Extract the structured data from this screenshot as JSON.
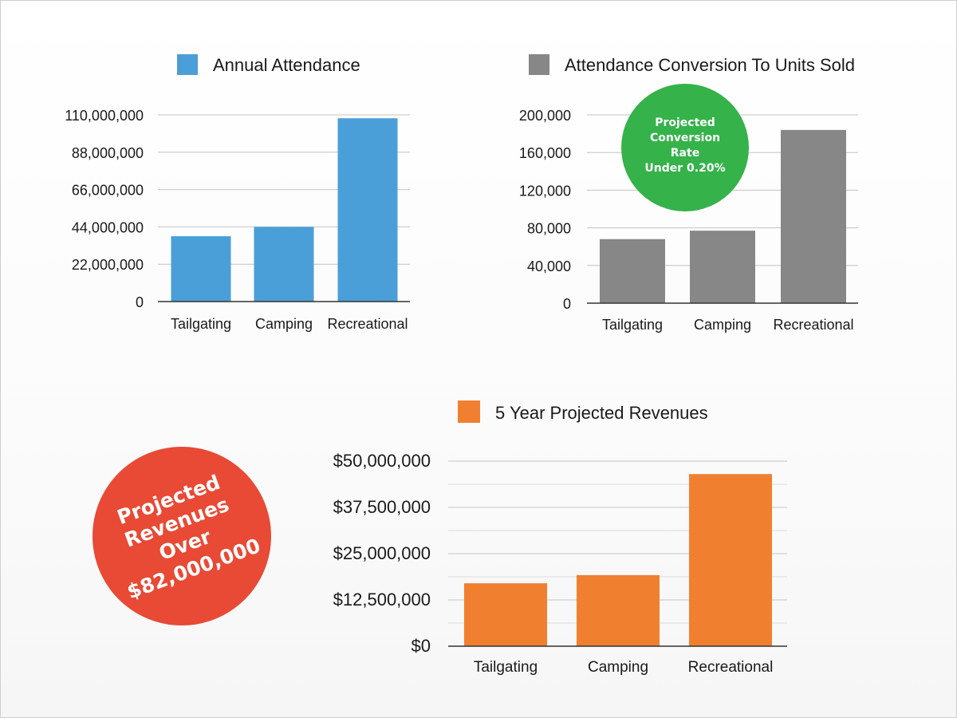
{
  "chart_data": [
    {
      "type": "bar",
      "title": "",
      "categories": [
        "Tailgating",
        "Camping",
        "Recreational"
      ],
      "series": [
        {
          "name": "Annual Attendance",
          "values": [
            38500000,
            44000000,
            108000000
          ],
          "color": "#4a9fd8"
        }
      ],
      "yticks": [
        "0",
        "22,000,000",
        "44,000,000",
        "66,000,000",
        "88,000,000",
        "110,000,000"
      ],
      "ylim": [
        0,
        110000000
      ],
      "legend": "top",
      "grid": true
    },
    {
      "type": "bar",
      "title": "",
      "categories": [
        "Tailgating",
        "Camping",
        "Recreational"
      ],
      "series": [
        {
          "name": "Attendance Conversion To Units Sold",
          "values": [
            68000,
            77000,
            184000
          ],
          "color": "#878787"
        }
      ],
      "yticks": [
        "0",
        "40,000",
        "80,000",
        "120,000",
        "160,000",
        "200,000"
      ],
      "ylim": [
        0,
        200000
      ],
      "legend": "top",
      "grid": true,
      "annotation": {
        "lines": [
          "Projected",
          "Conversion",
          "Rate",
          "Under 0.20%"
        ],
        "color": "#35b24a"
      }
    },
    {
      "type": "bar",
      "title": "",
      "categories": [
        "Tailgating",
        "Camping",
        "Recreational"
      ],
      "series": [
        {
          "name": "5 Year Projected Revenues",
          "values": [
            17000000,
            19200000,
            46500000
          ],
          "color": "#f08030"
        }
      ],
      "yticks": [
        "$0",
        "$12,500,000",
        "$25,000,000",
        "$37,500,000",
        "$50,000,000"
      ],
      "ylim": [
        0,
        50000000
      ],
      "legend": "top",
      "grid": true,
      "annotation": {
        "lines": [
          "Projected",
          "Revenues",
          "Over",
          "$82,000,000"
        ],
        "color": "#e84a35"
      }
    }
  ]
}
